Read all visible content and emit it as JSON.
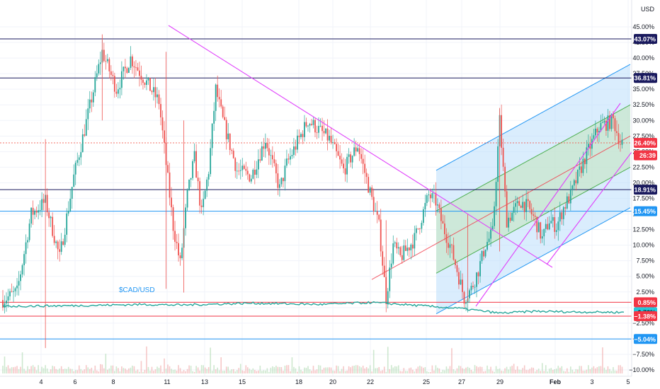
{
  "currency_button": "USD",
  "series_label": "$CAD/USD",
  "colors": {
    "up": "#26a69a",
    "down": "#ef5350",
    "trend": "#e040fb",
    "h_dark": "#1a1a5e",
    "h_blue": "#2196f3",
    "h_red": "#f23645",
    "chan_fill": "#bbdefb",
    "chan_mid": "#c8e6c9",
    "chan_line": "#4caf50",
    "cad": "#26a69a",
    "dashed": "#f44336"
  },
  "chart_data": {
    "type": "candlestick",
    "y_unit": "%",
    "y_ticks": [
      "45.00%",
      "42.50%",
      "40.00%",
      "37.50%",
      "35.00%",
      "32.50%",
      "30.00%",
      "27.50%",
      "25.00%",
      "22.50%",
      "20.00%",
      "17.50%",
      "15.00%",
      "12.50%",
      "10.00%",
      "7.50%",
      "5.00%",
      "2.50%",
      "0.00%",
      "−2.50%",
      "−5.00%",
      "−7.50%",
      "−10.00%"
    ],
    "y_values": [
      45,
      42.5,
      40,
      37.5,
      35,
      32.5,
      30,
      27.5,
      25,
      22.5,
      20,
      17.5,
      15,
      12.5,
      10,
      7.5,
      5,
      2.5,
      0,
      -2.5,
      -5,
      -7.5,
      -10
    ],
    "x_ticks": [
      "4",
      "6",
      "8",
      "11",
      "13",
      "15",
      "18",
      "20",
      "22",
      "25",
      "27",
      "29",
      "Feb",
      "3",
      "5"
    ],
    "x_labels_bold": [
      "Feb"
    ],
    "price_labels": [
      {
        "text": "43.07%",
        "value": 43.07,
        "style": "dark"
      },
      {
        "text": "36.81%",
        "value": 36.81,
        "style": "dark"
      },
      {
        "text": "26.40%",
        "value": 26.4,
        "style": "red"
      },
      {
        "text": "26:39",
        "value": 24.4,
        "style": "red"
      },
      {
        "text": "18.91%",
        "value": 18.91,
        "style": "dark"
      },
      {
        "text": "15.45%",
        "value": 15.45,
        "style": "blue"
      },
      {
        "text": "0.85%",
        "value": 0.85,
        "style": "red"
      },
      {
        "text": "−0.76%",
        "value": -0.76,
        "style": "teal"
      },
      {
        "text": "−1.38%",
        "value": -1.38,
        "style": "red"
      },
      {
        "text": "−5.04%",
        "value": -5.04,
        "style": "blue"
      }
    ],
    "horizontal_lines": [
      {
        "value": 43.07,
        "color": "h_dark"
      },
      {
        "value": 36.81,
        "color": "h_dark"
      },
      {
        "value": 18.91,
        "color": "h_dark"
      },
      {
        "value": 15.45,
        "color": "h_blue"
      },
      {
        "value": 0.85,
        "color": "h_red"
      },
      {
        "value": -1.38,
        "color": "h_red"
      },
      {
        "value": -5.04,
        "color": "h_blue"
      }
    ],
    "last_price": 26.4,
    "close_path": [
      [
        0,
        1.2
      ],
      [
        2,
        2.5
      ],
      [
        4,
        15
      ],
      [
        6,
        17
      ],
      [
        8,
        8
      ],
      [
        10,
        21
      ],
      [
        14,
        41
      ],
      [
        16,
        35
      ],
      [
        18,
        40
      ],
      [
        22,
        33
      ],
      [
        24,
        13
      ],
      [
        25,
        7
      ],
      [
        26,
        18
      ],
      [
        27,
        24
      ],
      [
        28,
        15
      ],
      [
        29,
        22
      ],
      [
        30,
        35
      ],
      [
        31,
        30
      ],
      [
        33,
        22
      ],
      [
        35,
        21
      ],
      [
        37,
        27
      ],
      [
        39,
        19
      ],
      [
        40,
        23
      ],
      [
        43,
        30
      ],
      [
        46,
        27
      ],
      [
        48,
        22
      ],
      [
        50,
        26
      ],
      [
        53,
        13
      ],
      [
        54,
        1.5
      ],
      [
        55,
        10
      ],
      [
        56,
        8
      ],
      [
        58,
        11
      ],
      [
        60,
        18
      ],
      [
        61,
        17
      ],
      [
        62,
        13
      ],
      [
        63,
        10
      ],
      [
        64,
        6
      ],
      [
        65,
        1.5
      ],
      [
        66,
        3
      ],
      [
        67,
        6
      ],
      [
        68,
        10
      ],
      [
        69,
        12
      ],
      [
        70,
        30
      ],
      [
        71,
        14
      ],
      [
        73,
        17
      ],
      [
        74,
        16
      ],
      [
        75,
        14
      ],
      [
        76,
        11
      ],
      [
        77,
        14
      ],
      [
        78,
        13
      ],
      [
        79,
        16
      ],
      [
        80,
        18
      ],
      [
        82,
        24
      ],
      [
        84,
        29
      ],
      [
        86,
        30
      ],
      [
        87,
        26.4
      ]
    ],
    "volatility": 1.1,
    "cad_usd_path": [
      [
        0,
        0.2
      ],
      [
        10,
        0.3
      ],
      [
        20,
        0.5
      ],
      [
        25,
        0.4
      ],
      [
        35,
        0.7
      ],
      [
        45,
        0.5
      ],
      [
        52,
        0.8
      ],
      [
        55,
        0.6
      ],
      [
        65,
        -0.2
      ],
      [
        70,
        -0.9
      ],
      [
        75,
        -0.6
      ],
      [
        80,
        -0.7
      ],
      [
        87,
        -0.76
      ]
    ],
    "trendlines": [
      {
        "points": [
          [
            0,
            45.5
          ],
          [
            21.5,
            18.5
          ]
        ],
        "bar_range": [
          0,
          87
        ]
      },
      {
        "points": [
          [
            21.5,
            18.5
          ],
          [
            30.5,
            6.5
          ]
        ],
        "bar_range": [
          0,
          87
        ]
      }
    ],
    "channel": {
      "start_bar": 21.5,
      "end_bar": 29.7,
      "mid_start": 10.5,
      "mid_end": 27.5,
      "half_width_inner": 5,
      "half_width_outer": 11.5
    },
    "inner_channel": {
      "start_bar": 23,
      "end_bar": 29.6,
      "lo_start": 0.5,
      "lo_end": 25.5,
      "hi_start": 4.5,
      "hi_end": 33
    }
  }
}
